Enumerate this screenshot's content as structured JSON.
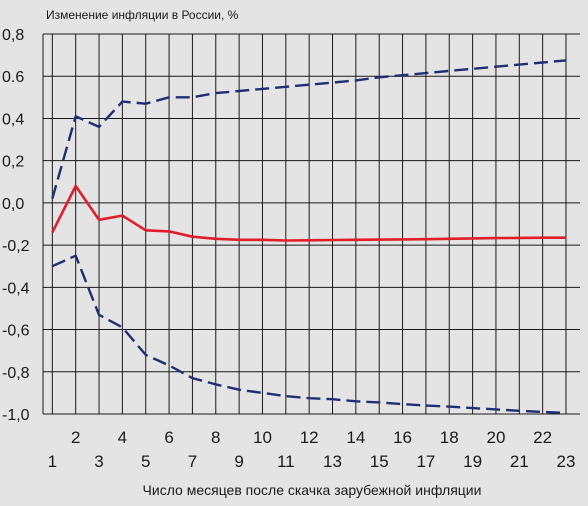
{
  "chart_data": {
    "type": "line",
    "title": "Изменение инфляции в России, %",
    "xlabel": "Число месяцев после скачка зарубежной инфляции",
    "ylabel": "",
    "x": [
      1,
      2,
      3,
      4,
      5,
      6,
      7,
      8,
      9,
      10,
      11,
      12,
      13,
      14,
      15,
      16,
      17,
      18,
      19,
      20,
      21,
      22,
      23
    ],
    "xlim": [
      0.6,
      23.6
    ],
    "ylim": [
      -1.0,
      0.8
    ],
    "y_ticks": [
      0.8,
      0.6,
      0.4,
      0.2,
      0.0,
      -0.2,
      -0.4,
      -0.6,
      -0.8,
      -1.0
    ],
    "y_tick_labels": [
      "0,8",
      "0.6",
      "0,4",
      "0,2",
      "0,0",
      "-0,2",
      "-0,4",
      "-0,6",
      "-0,8",
      "-1,0"
    ],
    "x_tick_labels_upper": [
      "2",
      "4",
      "6",
      "8",
      "10",
      "12",
      "14",
      "16",
      "18",
      "20",
      "22"
    ],
    "x_tick_labels_lower": [
      "1",
      "3",
      "5",
      "7",
      "9",
      "11",
      "13",
      "15",
      "17",
      "19",
      "21",
      "23"
    ],
    "grid": true,
    "series": [
      {
        "style": "solid",
        "color": "#e01e2a",
        "values": [
          -0.14,
          0.08,
          -0.08,
          -0.06,
          -0.13,
          -0.135,
          -0.16,
          -0.17,
          -0.175,
          -0.175,
          -0.178,
          -0.177,
          -0.176,
          -0.175,
          -0.174,
          -0.173,
          -0.172,
          -0.17,
          -0.168,
          -0.167,
          -0.166,
          -0.165,
          -0.165
        ]
      },
      {
        "style": "dashed",
        "color": "#1f2f73",
        "values": [
          0.02,
          0.41,
          0.36,
          0.48,
          0.47,
          0.5,
          0.5,
          0.52,
          0.53,
          0.54,
          0.55,
          0.56,
          0.57,
          0.58,
          0.595,
          0.605,
          0.615,
          0.625,
          0.635,
          0.645,
          0.655,
          0.665,
          0.675
        ]
      },
      {
        "style": "dashed",
        "color": "#1f2f73",
        "values": [
          -0.3,
          -0.25,
          -0.53,
          -0.59,
          -0.72,
          -0.77,
          -0.83,
          -0.86,
          -0.885,
          -0.9,
          -0.915,
          -0.925,
          -0.93,
          -0.94,
          -0.945,
          -0.953,
          -0.96,
          -0.965,
          -0.972,
          -0.978,
          -0.985,
          -0.99,
          -0.995
        ]
      }
    ]
  }
}
